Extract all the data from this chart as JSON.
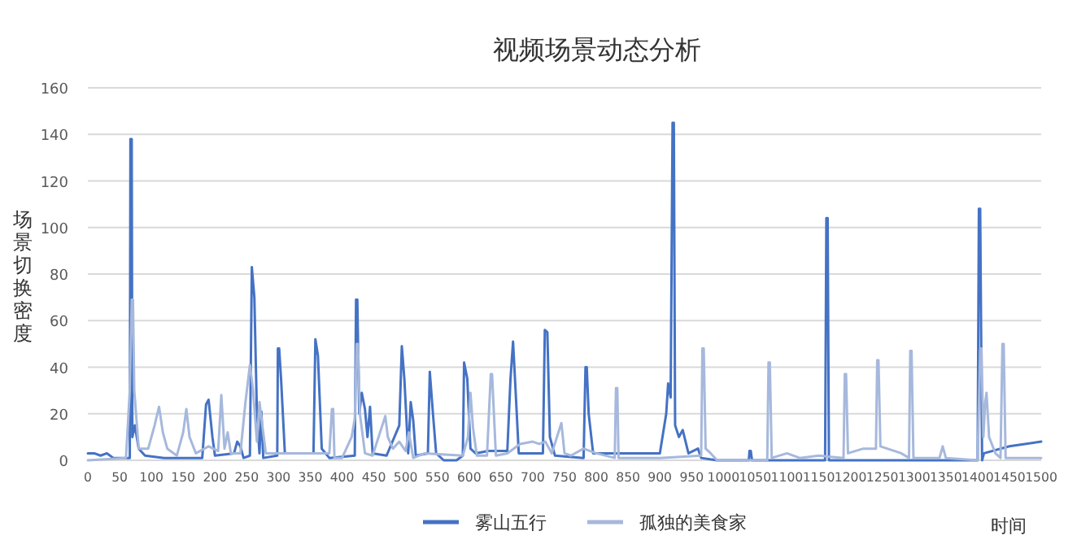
{
  "chart_data": {
    "type": "line",
    "title": "视频场景动态分析",
    "xlabel": "时间",
    "ylabel": "场景切换密度",
    "xlim": [
      0,
      1500
    ],
    "ylim": [
      0,
      160
    ],
    "xticks": [
      0,
      50,
      100,
      150,
      200,
      250,
      300,
      350,
      400,
      450,
      500,
      550,
      600,
      650,
      700,
      750,
      800,
      850,
      900,
      950,
      1000,
      1050,
      1100,
      1150,
      1200,
      1250,
      1300,
      1350,
      1400,
      1450,
      1500
    ],
    "yticks": [
      0,
      20,
      40,
      60,
      80,
      100,
      120,
      140,
      160
    ],
    "grid": "y",
    "legend": "bottom",
    "series": [
      {
        "name": "雾山五行",
        "color": "#4472c4",
        "x": [
          0,
          10,
          20,
          30,
          40,
          60,
          66,
          67,
          69,
          70,
          74,
          80,
          90,
          120,
          180,
          186,
          190,
          196,
          200,
          230,
          235,
          240,
          245,
          255,
          258,
          262,
          266,
          270,
          273,
          276,
          298,
          299,
          301,
          304,
          310,
          355,
          358,
          362,
          368,
          380,
          420,
          422,
          424,
          427,
          431,
          436,
          440,
          444,
          448,
          470,
          490,
          494,
          498,
          504,
          508,
          512,
          516,
          535,
          538,
          543,
          548,
          560,
          580,
          590,
          592,
          597,
          602,
          610,
          630,
          660,
          665,
          669,
          673,
          678,
          700,
          716,
          719,
          723,
          727,
          735,
          780,
          783,
          785,
          788,
          795,
          850,
          900,
          910,
          913,
          917,
          920,
          922,
          924,
          930,
          936,
          945,
          960,
          965,
          990,
          1040,
          1041,
          1043,
          1045,
          1160,
          1162,
          1164,
          1166,
          1400,
          1402,
          1404,
          1407,
          1410,
          1450,
          1500
        ],
        "values": [
          3,
          3,
          2,
          3,
          1,
          1,
          1,
          138,
          138,
          10,
          15,
          5,
          2,
          1,
          1,
          24,
          26,
          10,
          2,
          3,
          8,
          6,
          1,
          2,
          83,
          70,
          20,
          3,
          21,
          1,
          2,
          48,
          48,
          35,
          3,
          3,
          52,
          45,
          5,
          1,
          2,
          69,
          69,
          20,
          29,
          22,
          10,
          23,
          3,
          2,
          15,
          49,
          35,
          3,
          25,
          17,
          2,
          3,
          38,
          20,
          3,
          0,
          0,
          2,
          42,
          35,
          5,
          3,
          4,
          4,
          35,
          51,
          30,
          3,
          3,
          3,
          56,
          55,
          10,
          2,
          1,
          40,
          40,
          20,
          3,
          3,
          3,
          20,
          33,
          27,
          145,
          145,
          15,
          10,
          13,
          3,
          5,
          1,
          0,
          0,
          4,
          4,
          0,
          0,
          104,
          104,
          0,
          0,
          108,
          108,
          0,
          3,
          6,
          8
        ]
      },
      {
        "name": "孤独的美食家",
        "color": "#a6b8dc",
        "x": [
          0,
          60,
          66,
          69,
          71,
          73,
          80,
          95,
          105,
          112,
          118,
          125,
          140,
          150,
          155,
          160,
          170,
          190,
          205,
          210,
          215,
          220,
          225,
          240,
          248,
          255,
          260,
          266,
          270,
          280,
          380,
          384,
          386,
          388,
          400,
          415,
          420,
          423,
          425,
          428,
          436,
          448,
          468,
          472,
          480,
          490,
          500,
          505,
          512,
          530,
          590,
          598,
          602,
          606,
          612,
          628,
          634,
          636,
          642,
          660,
          680,
          700,
          710,
          720,
          730,
          745,
          750,
          760,
          780,
          800,
          829,
          831,
          833,
          835,
          900,
          965,
          967,
          969,
          972,
          980,
          990,
          1069,
          1071,
          1073,
          1076,
          1100,
          1120,
          1150,
          1189,
          1191,
          1193,
          1196,
          1220,
          1240,
          1242,
          1244,
          1247,
          1280,
          1292,
          1294,
          1296,
          1299,
          1340,
          1345,
          1350,
          1400,
          1404,
          1406,
          1409,
          1412,
          1414,
          1418,
          1428,
          1436,
          1439,
          1441,
          1444,
          1500
        ],
        "values": [
          0,
          1,
          30,
          69,
          69,
          30,
          5,
          5,
          15,
          23,
          12,
          5,
          2,
          12,
          22,
          10,
          3,
          6,
          4,
          28,
          5,
          12,
          3,
          3,
          25,
          41,
          30,
          8,
          25,
          3,
          3,
          22,
          22,
          1,
          1,
          10,
          18,
          50,
          50,
          20,
          3,
          2,
          19,
          10,
          5,
          8,
          4,
          12,
          1,
          3,
          2,
          10,
          29,
          14,
          2,
          2,
          37,
          37,
          2,
          3,
          7,
          8,
          7,
          8,
          3,
          16,
          3,
          2,
          5,
          3,
          1,
          31,
          31,
          1,
          1,
          2,
          48,
          48,
          5,
          3,
          0,
          0,
          42,
          42,
          1,
          3,
          1,
          2,
          1,
          37,
          37,
          3,
          5,
          5,
          43,
          43,
          6,
          3,
          1,
          47,
          47,
          1,
          1,
          6,
          1,
          0,
          48,
          48,
          10,
          25,
          29,
          10,
          3,
          1,
          50,
          50,
          1,
          1
        ]
      }
    ]
  }
}
